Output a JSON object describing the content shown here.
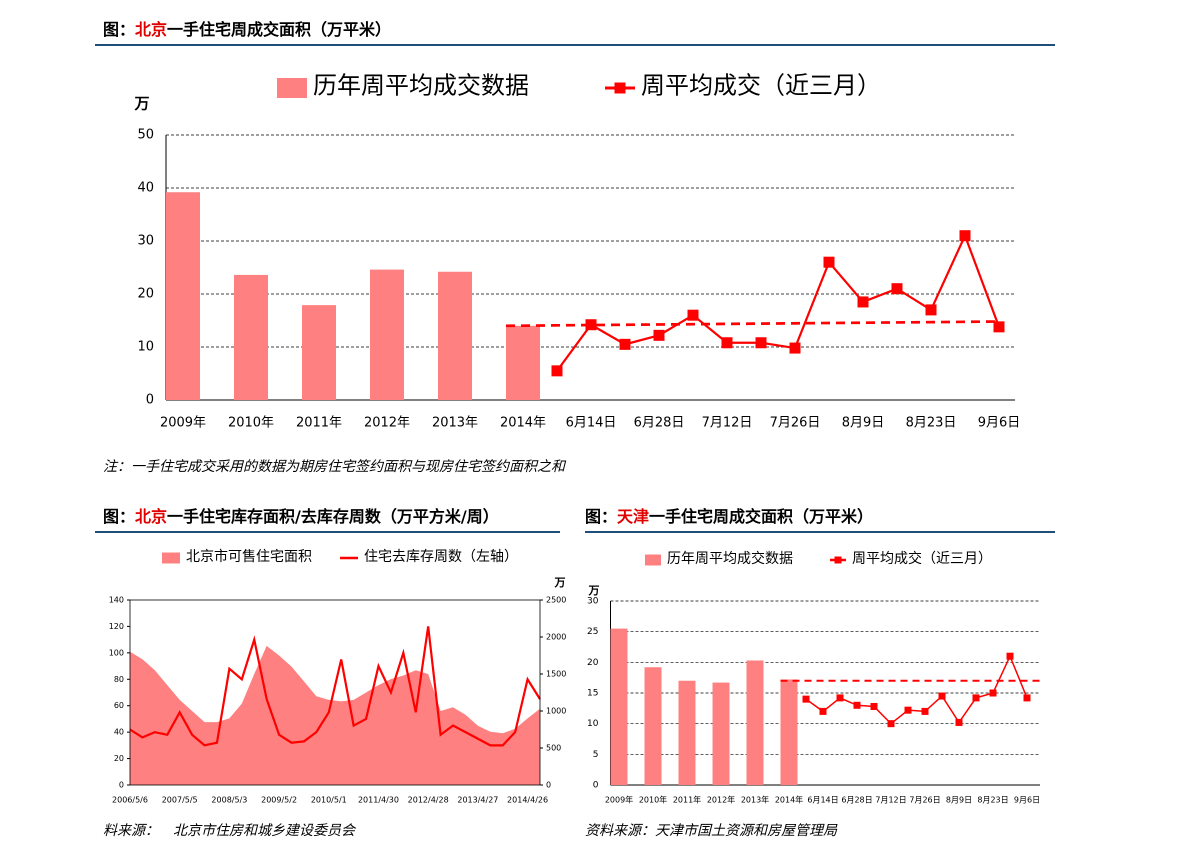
{
  "chart_data": [
    {
      "type": "combo",
      "title": [
        "图：",
        "北京",
        "一手住宅周成交面积（万平米）"
      ],
      "y_unit": "万",
      "categories": [
        "2009年",
        null,
        "2010年",
        null,
        "2011年",
        null,
        "2012年",
        null,
        "2013年",
        null,
        "2014年",
        null,
        "6月14日",
        null,
        "6月28日",
        null,
        "7月12日",
        null,
        "7月26日",
        null,
        "8月9日",
        null,
        "8月23日",
        null,
        "9月6日"
      ],
      "series": [
        {
          "name": "历年周平均成交数据",
          "type": "bar",
          "color": "#ff8080",
          "values": [
            39.2,
            null,
            23.6,
            null,
            17.9,
            null,
            24.6,
            null,
            24.2,
            null,
            14.0,
            null,
            null,
            null,
            null,
            null,
            null,
            null,
            null,
            null,
            null,
            null,
            null,
            null,
            null
          ]
        },
        {
          "name": "周平均成交（近三月）",
          "type": "line",
          "color": "#ff0000",
          "values": [
            null,
            null,
            null,
            null,
            null,
            null,
            null,
            null,
            null,
            null,
            null,
            5.5,
            14.2,
            10.5,
            12.2,
            16.0,
            10.8,
            10.8,
            9.8,
            26.0,
            18.5,
            21.0,
            17.0,
            31.0,
            13.8
          ]
        }
      ],
      "trend": {
        "values": [
          14.0,
          14.8
        ],
        "color": "#ff0000"
      },
      "ylim": [
        0,
        50
      ],
      "yticks": [
        0,
        10,
        20,
        30,
        40,
        50
      ],
      "grid": true
    },
    {
      "type": "area-line",
      "title": [
        "图：",
        "北京",
        "一手住宅库存面积/去库存周数（万平方米/周）"
      ],
      "y2_unit": "万",
      "categories": [
        "2006/5/6",
        null,
        null,
        null,
        "2007/5/5",
        null,
        null,
        null,
        "2008/5/3",
        null,
        null,
        null,
        "2009/5/2",
        null,
        null,
        null,
        "2010/5/1",
        null,
        null,
        null,
        "2011/4/30",
        null,
        null,
        null,
        "2012/4/28",
        null,
        null,
        null,
        "2013/4/27",
        null,
        null,
        null,
        "2014/4/26",
        null
      ],
      "series": [
        {
          "name": "北京市可售住宅面积",
          "type": "area",
          "axis": "y2",
          "color": "#ff8080",
          "values": [
            1800,
            1700,
            1550,
            1350,
            1150,
            1000,
            850,
            850,
            900,
            1100,
            1500,
            1880,
            1750,
            1600,
            1400,
            1200,
            1150,
            1130,
            1150,
            1250,
            1350,
            1430,
            1480,
            1550,
            1500,
            1000,
            1050,
            950,
            800,
            720,
            700,
            760,
            900,
            1030
          ]
        },
        {
          "name": "住宅去库存周数（左轴）",
          "type": "line",
          "color": "#ff0000",
          "values": [
            42,
            36,
            40,
            38,
            55,
            38,
            30,
            32,
            88,
            80,
            110,
            65,
            38,
            32,
            33,
            40,
            55,
            95,
            45,
            50,
            90,
            70,
            100,
            55,
            120,
            38,
            45,
            40,
            35,
            30,
            30,
            40,
            80,
            65
          ]
        }
      ],
      "ylim": [
        0,
        140
      ],
      "yticks": [
        0,
        20,
        40,
        60,
        80,
        100,
        120,
        140
      ],
      "y2lim": [
        0,
        2500
      ],
      "y2ticks": [
        0,
        500,
        1000,
        1500,
        2000,
        2500
      ]
    },
    {
      "type": "combo",
      "title": [
        "图：",
        "天津",
        "一手住宅周成交面积（万平米）"
      ],
      "y_unit": "万",
      "categories": [
        "2009年",
        null,
        "2010年",
        null,
        "2011年",
        null,
        "2012年",
        null,
        "2013年",
        null,
        "2014年",
        null,
        "6月14日",
        null,
        "6月28日",
        null,
        "7月12日",
        null,
        "7月26日",
        null,
        "8月9日",
        null,
        "8月23日",
        null,
        "9月6日"
      ],
      "series": [
        {
          "name": "历年周平均成交数据",
          "type": "bar",
          "color": "#ff8080",
          "values": [
            25.5,
            null,
            19.2,
            null,
            17.0,
            null,
            16.7,
            null,
            20.3,
            null,
            17.2,
            null,
            null,
            null,
            null,
            null,
            null,
            null,
            null,
            null,
            null,
            null,
            null,
            null,
            null
          ]
        },
        {
          "name": "周平均成交（近三月）",
          "type": "line",
          "color": "#ff0000",
          "values": [
            null,
            null,
            null,
            null,
            null,
            null,
            null,
            null,
            null,
            null,
            null,
            14.0,
            12.0,
            14.2,
            13.0,
            12.8,
            10.0,
            12.2,
            12.0,
            14.5,
            10.2,
            14.2,
            15.0,
            21.0,
            14.2
          ]
        }
      ],
      "trend": {
        "values": [
          17.0,
          17.0
        ],
        "color": "#ff0000"
      },
      "ylim": [
        0,
        30
      ],
      "yticks": [
        0,
        5,
        10,
        15,
        20,
        25,
        30
      ],
      "grid": true
    }
  ],
  "note": "注：一手住宅成交采用的数据为期房住宅签约面积与现房住宅签约面积之和",
  "sources": [
    {
      "label": "料来源：",
      "text": "北京市住房和城乡建设委员会"
    },
    {
      "label": "资料来源：",
      "text": "天津市国土资源和房屋管理局"
    }
  ]
}
